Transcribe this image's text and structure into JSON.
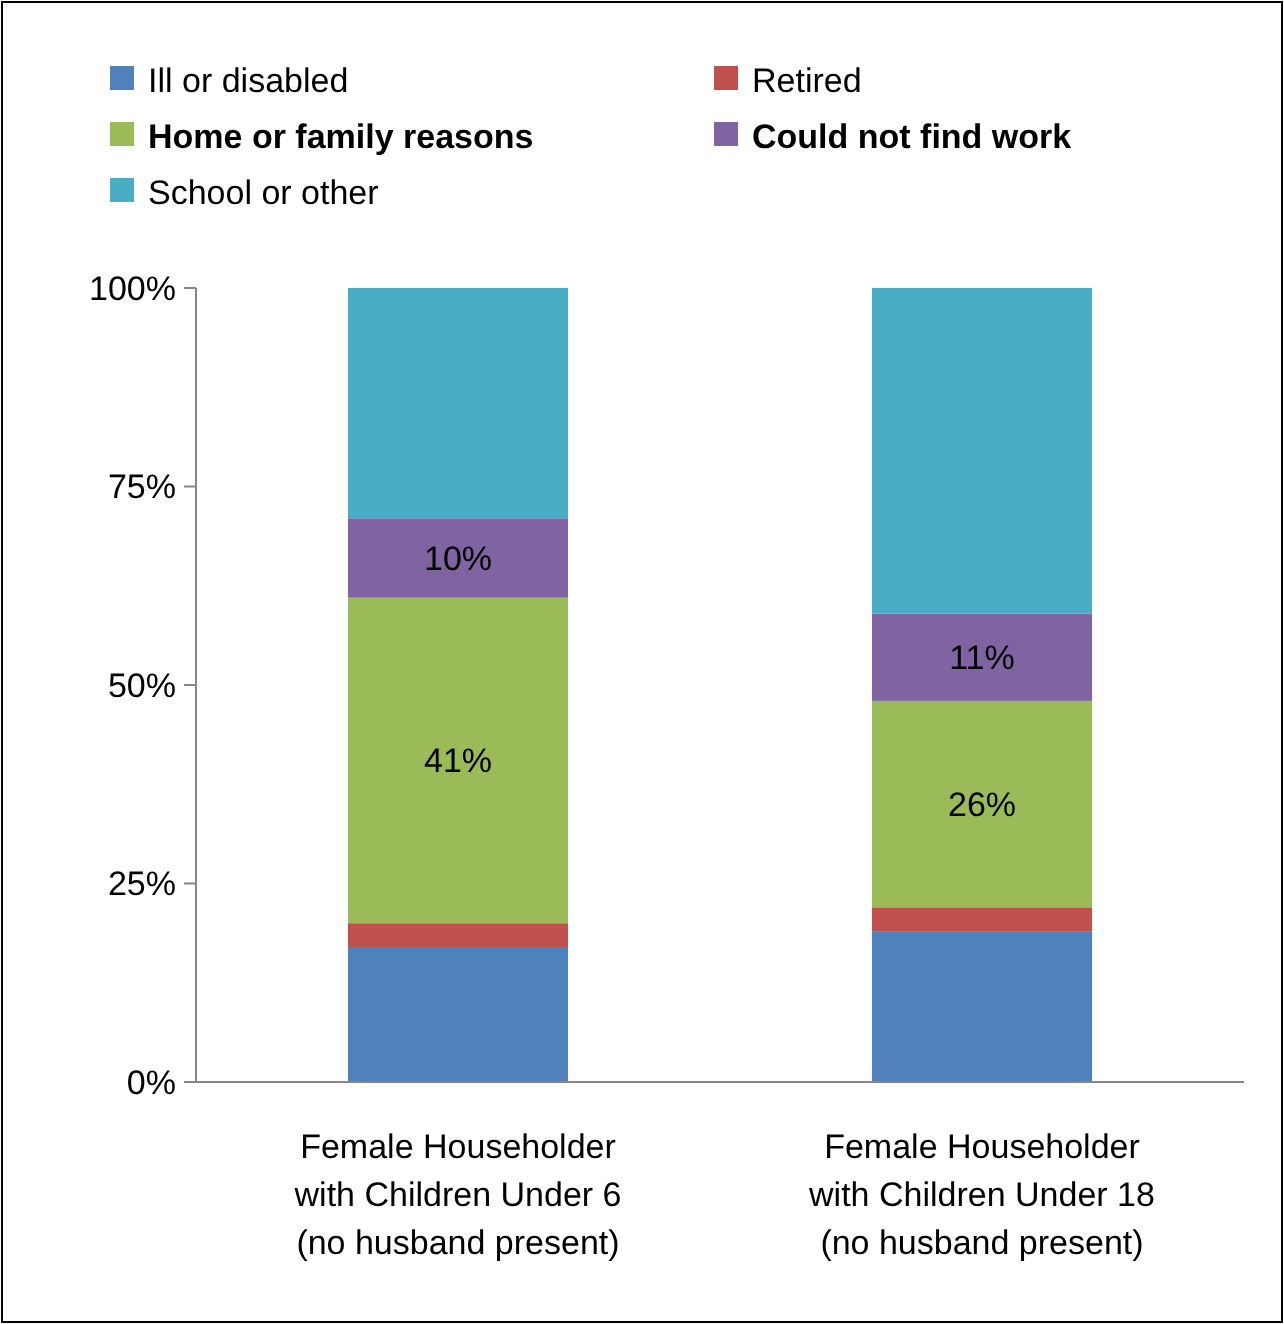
{
  "chart_data": {
    "type": "bar",
    "stacked": true,
    "categories": [
      "Female Householder\nwith Children Under 6\n(no husband present)",
      "Female Householder\nwith Children Under 18\n(no husband present)"
    ],
    "series": [
      {
        "name": "Ill or disabled",
        "color": "#4f81bd",
        "values": [
          17,
          19
        ]
      },
      {
        "name": "Retired",
        "color": "#c0504d",
        "values": [
          3,
          3
        ]
      },
      {
        "name": "Home or family reasons",
        "color": "#9bbb59",
        "values": [
          41,
          26
        ],
        "value_labels": [
          "41%",
          "26%"
        ]
      },
      {
        "name": "Could not find work",
        "color": "#8064a2",
        "values": [
          10,
          11
        ],
        "value_labels": [
          "10%",
          "11%"
        ]
      },
      {
        "name": "School or other",
        "color": "#4bacc6",
        "values": [
          29,
          41
        ]
      }
    ],
    "ylim": [
      0,
      100
    ],
    "yticks": [
      {
        "value": 0,
        "label": "0%"
      },
      {
        "value": 25,
        "label": "25%"
      },
      {
        "value": 50,
        "label": "50%"
      },
      {
        "value": 75,
        "label": "75%"
      },
      {
        "value": 100,
        "label": "100%"
      }
    ],
    "grid": false,
    "legend": "top"
  }
}
